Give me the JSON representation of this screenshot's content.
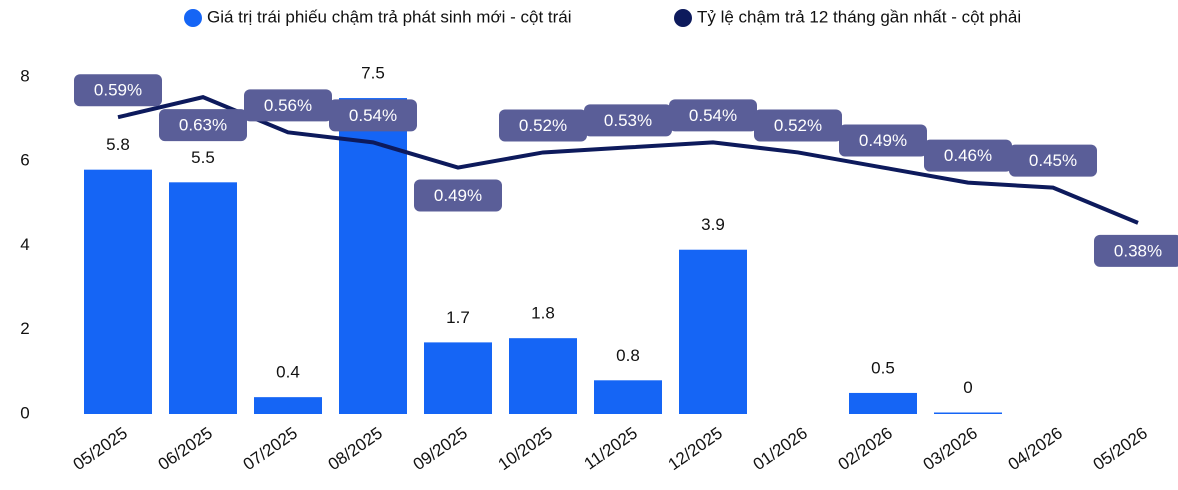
{
  "chart_data": {
    "type": "bar_line",
    "categories": [
      "05/2025",
      "06/2025",
      "07/2025",
      "08/2025",
      "09/2025",
      "10/2025",
      "11/2025",
      "12/2025",
      "01/2026",
      "02/2026",
      "03/2026",
      "04/2026",
      "05/2026"
    ],
    "series": [
      {
        "name": "Giá trị trái phiếu chậm trả phát sinh mới - cột trái",
        "color": "#1565f5",
        "type": "bar",
        "values": [
          5.8,
          5.5,
          0.4,
          7.5,
          1.7,
          1.8,
          0.8,
          3.9,
          null,
          0.5,
          0,
          null,
          null
        ]
      },
      {
        "name": "Tỷ lệ chậm trả 12 tháng gần nhất - cột phải",
        "color": "#0d1a5c",
        "type": "line",
        "axis": "y2",
        "values": [
          0.59,
          0.63,
          0.56,
          0.54,
          0.49,
          0.52,
          0.53,
          0.54,
          0.52,
          0.49,
          0.46,
          0.45,
          0.38
        ],
        "value_labels": [
          "0.59%",
          "0.63%",
          "0.56%",
          "0.54%",
          "0.49%",
          "0.52%",
          "0.53%",
          "0.54%",
          "0.52%",
          "0.49%",
          "0.46%",
          "0.45%",
          "0.38%"
        ]
      }
    ],
    "ylim": [
      0,
      8
    ],
    "yticks": [
      0,
      2,
      4,
      6,
      8
    ],
    "y2lim": [
      0,
      0.67
    ],
    "grid": false,
    "legend": "top"
  }
}
